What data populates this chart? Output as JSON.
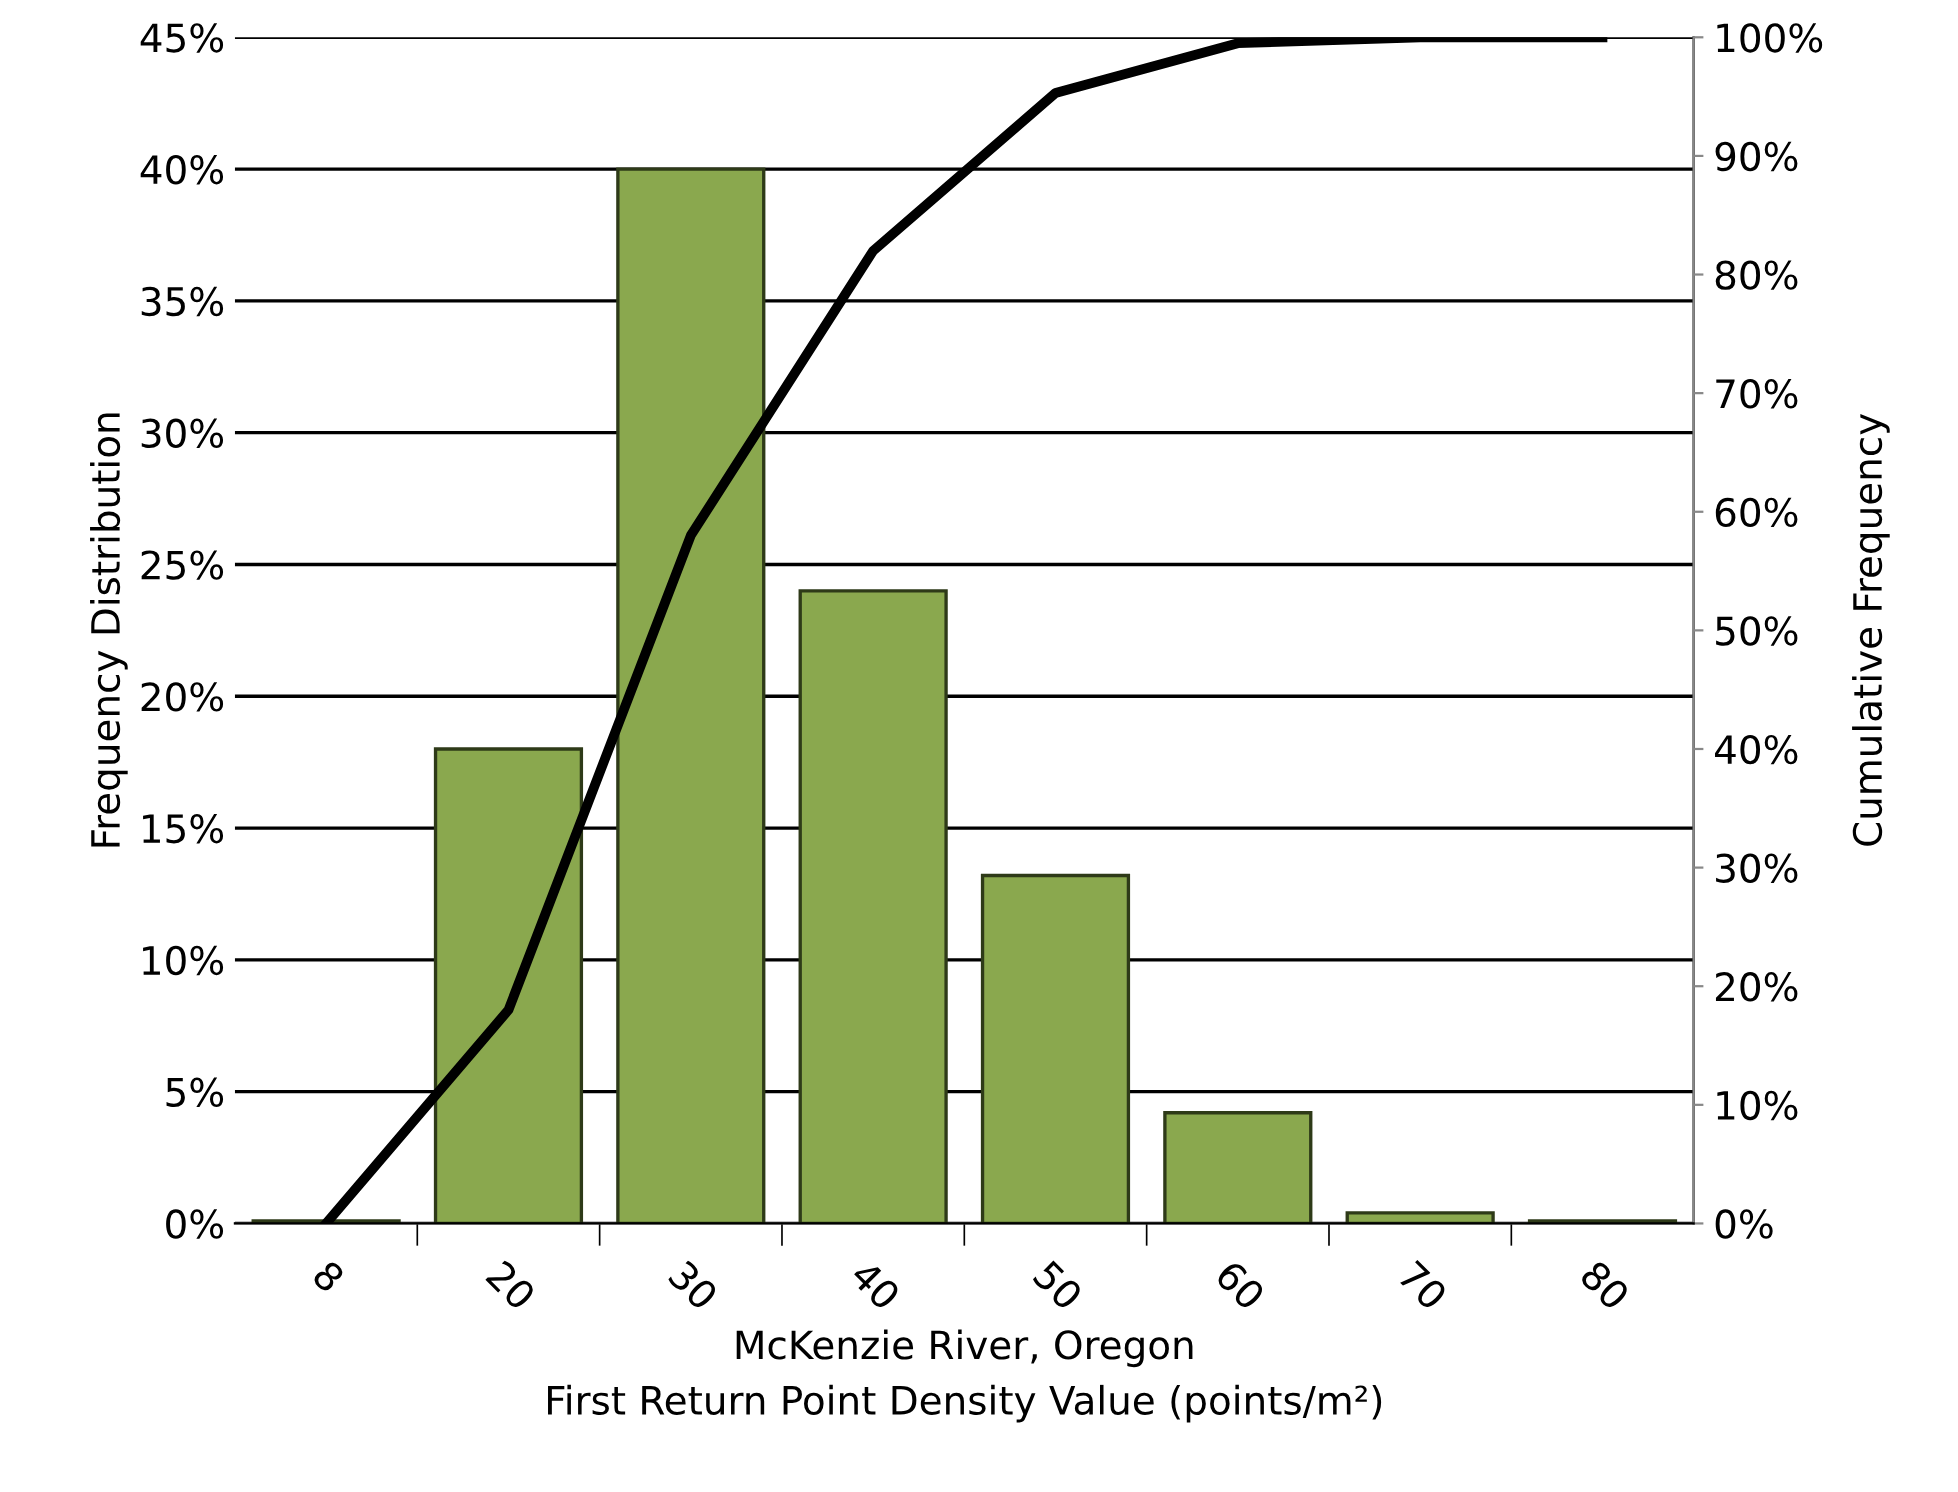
{
  "chart_data": {
    "type": "bar",
    "categories": [
      "8",
      "20",
      "30",
      "40",
      "50",
      "60",
      "70",
      "80"
    ],
    "series": [
      {
        "color": "#8aa84e",
        "values": [
          0.1,
          18,
          40,
          24,
          13.2,
          4.2,
          0.4,
          0.1
        ]
      },
      {
        "type": "line",
        "axis": "y2",
        "color": "#000000",
        "values": [
          0,
          18,
          58,
          82,
          95.3,
          99.5,
          100,
          100
        ]
      }
    ],
    "xlabel": "McKenzie River, Oregon\nFirst Return Point Density Value (points/m²)",
    "ylabel": "Frequency Distribution",
    "y2label": "Cumulative Frequency",
    "ylim": [
      0,
      45
    ],
    "yticks": [
      {
        "value": 0,
        "label": "0%"
      },
      {
        "value": 5,
        "label": "5%"
      },
      {
        "value": 10,
        "label": "10%"
      },
      {
        "value": 15,
        "label": "15%"
      },
      {
        "value": 20,
        "label": "20%"
      },
      {
        "value": 25,
        "label": "25%"
      },
      {
        "value": 30,
        "label": "30%"
      },
      {
        "value": 35,
        "label": "35%"
      },
      {
        "value": 40,
        "label": "40%"
      },
      {
        "value": 45,
        "label": "45%"
      }
    ],
    "y2lim": [
      0,
      100
    ],
    "y2ticks": [
      {
        "value": 0,
        "label": "0%"
      },
      {
        "value": 10,
        "label": "10%"
      },
      {
        "value": 20,
        "label": "20%"
      },
      {
        "value": 30,
        "label": "30%"
      },
      {
        "value": 40,
        "label": "40%"
      },
      {
        "value": 50,
        "label": "50%"
      },
      {
        "value": 60,
        "label": "60%"
      },
      {
        "value": 70,
        "label": "70%"
      },
      {
        "value": 80,
        "label": "80%"
      },
      {
        "value": 90,
        "label": "90%"
      },
      {
        "value": 100,
        "label": "100%"
      }
    ],
    "grid": "y",
    "marker": "none",
    "line_style": "solid"
  }
}
